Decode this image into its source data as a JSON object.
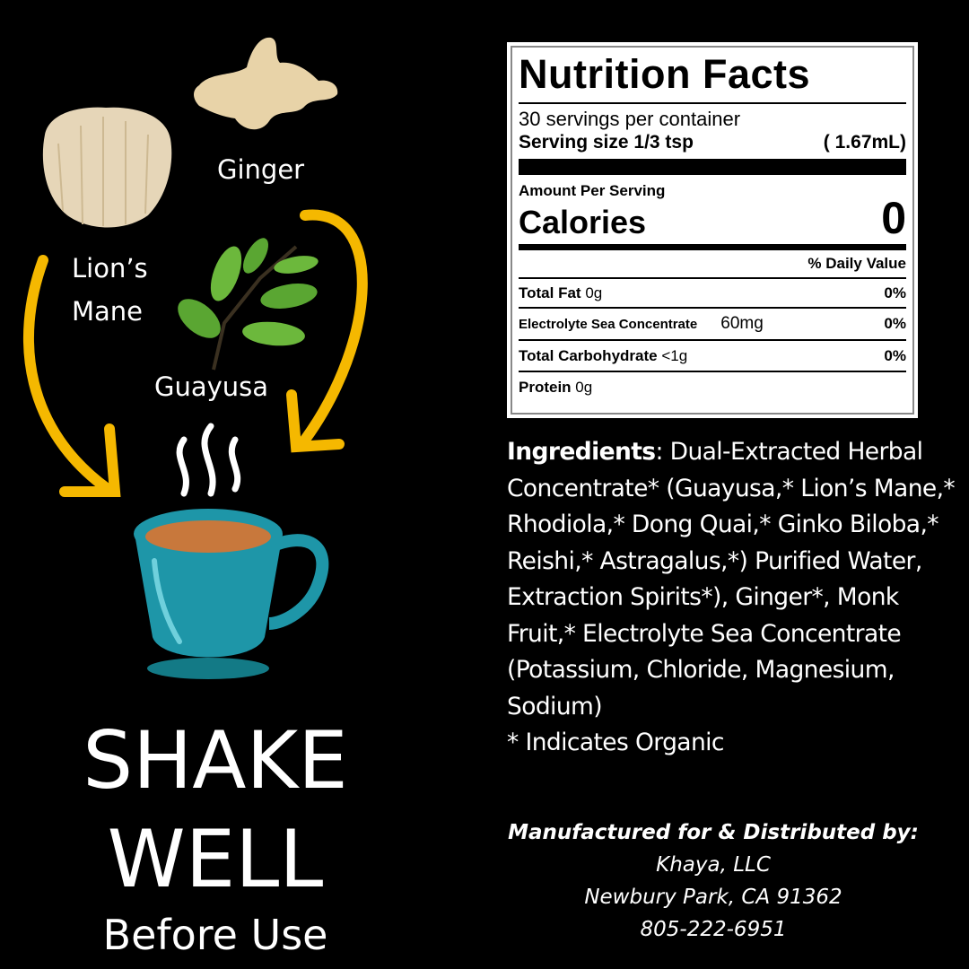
{
  "illustration": {
    "labels": {
      "ginger": "Ginger",
      "lions_mane_line1": "Lion’s",
      "lions_mane_line2": "Mane",
      "guayusa": "Guayusa"
    },
    "colors": {
      "arrow": "#f5b800",
      "cup": "#1e96a8",
      "tea": "#c8783c",
      "background": "#000000"
    }
  },
  "instruction": {
    "line1": "SHAKE",
    "line2": "WELL",
    "line3": "Before Use"
  },
  "nutrition": {
    "title": "Nutrition Facts",
    "servings": "30 servings per container",
    "serving_size_label": "Serving size 1/3 tsp",
    "serving_size_metric": "( 1.67mL)",
    "amount_per_serving": "Amount Per Serving",
    "calories_label": "Calories",
    "calories_value": "0",
    "daily_value_header": "% Daily Value",
    "rows": [
      {
        "name": "Total Fat",
        "amount": "0g",
        "dv": "0%"
      },
      {
        "name": "Electrolyte Sea Concentrate",
        "amount": "60mg",
        "dv": "0%"
      },
      {
        "name": "Total Carbohydrate",
        "amount": "<1g",
        "dv": "0%"
      },
      {
        "name": "Protein",
        "amount": "0g",
        "dv": ""
      }
    ]
  },
  "ingredients": {
    "label": "Ingredients",
    "text": ": Dual-Extracted Herbal Concentrate* (Guayusa,* Lion’s Mane,* Rhodiola,* Dong Quai,* Ginko Biloba,* Reishi,* Astragalus,*) Purified Water, Extraction Spirits*), Ginger*, Monk Fruit,* Electrolyte Sea Concentrate (Potassium, Chloride, Magnesium, Sodium)",
    "note": "* Indicates Organic"
  },
  "manufacturer": {
    "heading": "Manufactured for & Distributed by:",
    "name": "Khaya, LLC",
    "address": "Newbury Park, CA 91362",
    "phone": "805-222-6951"
  }
}
